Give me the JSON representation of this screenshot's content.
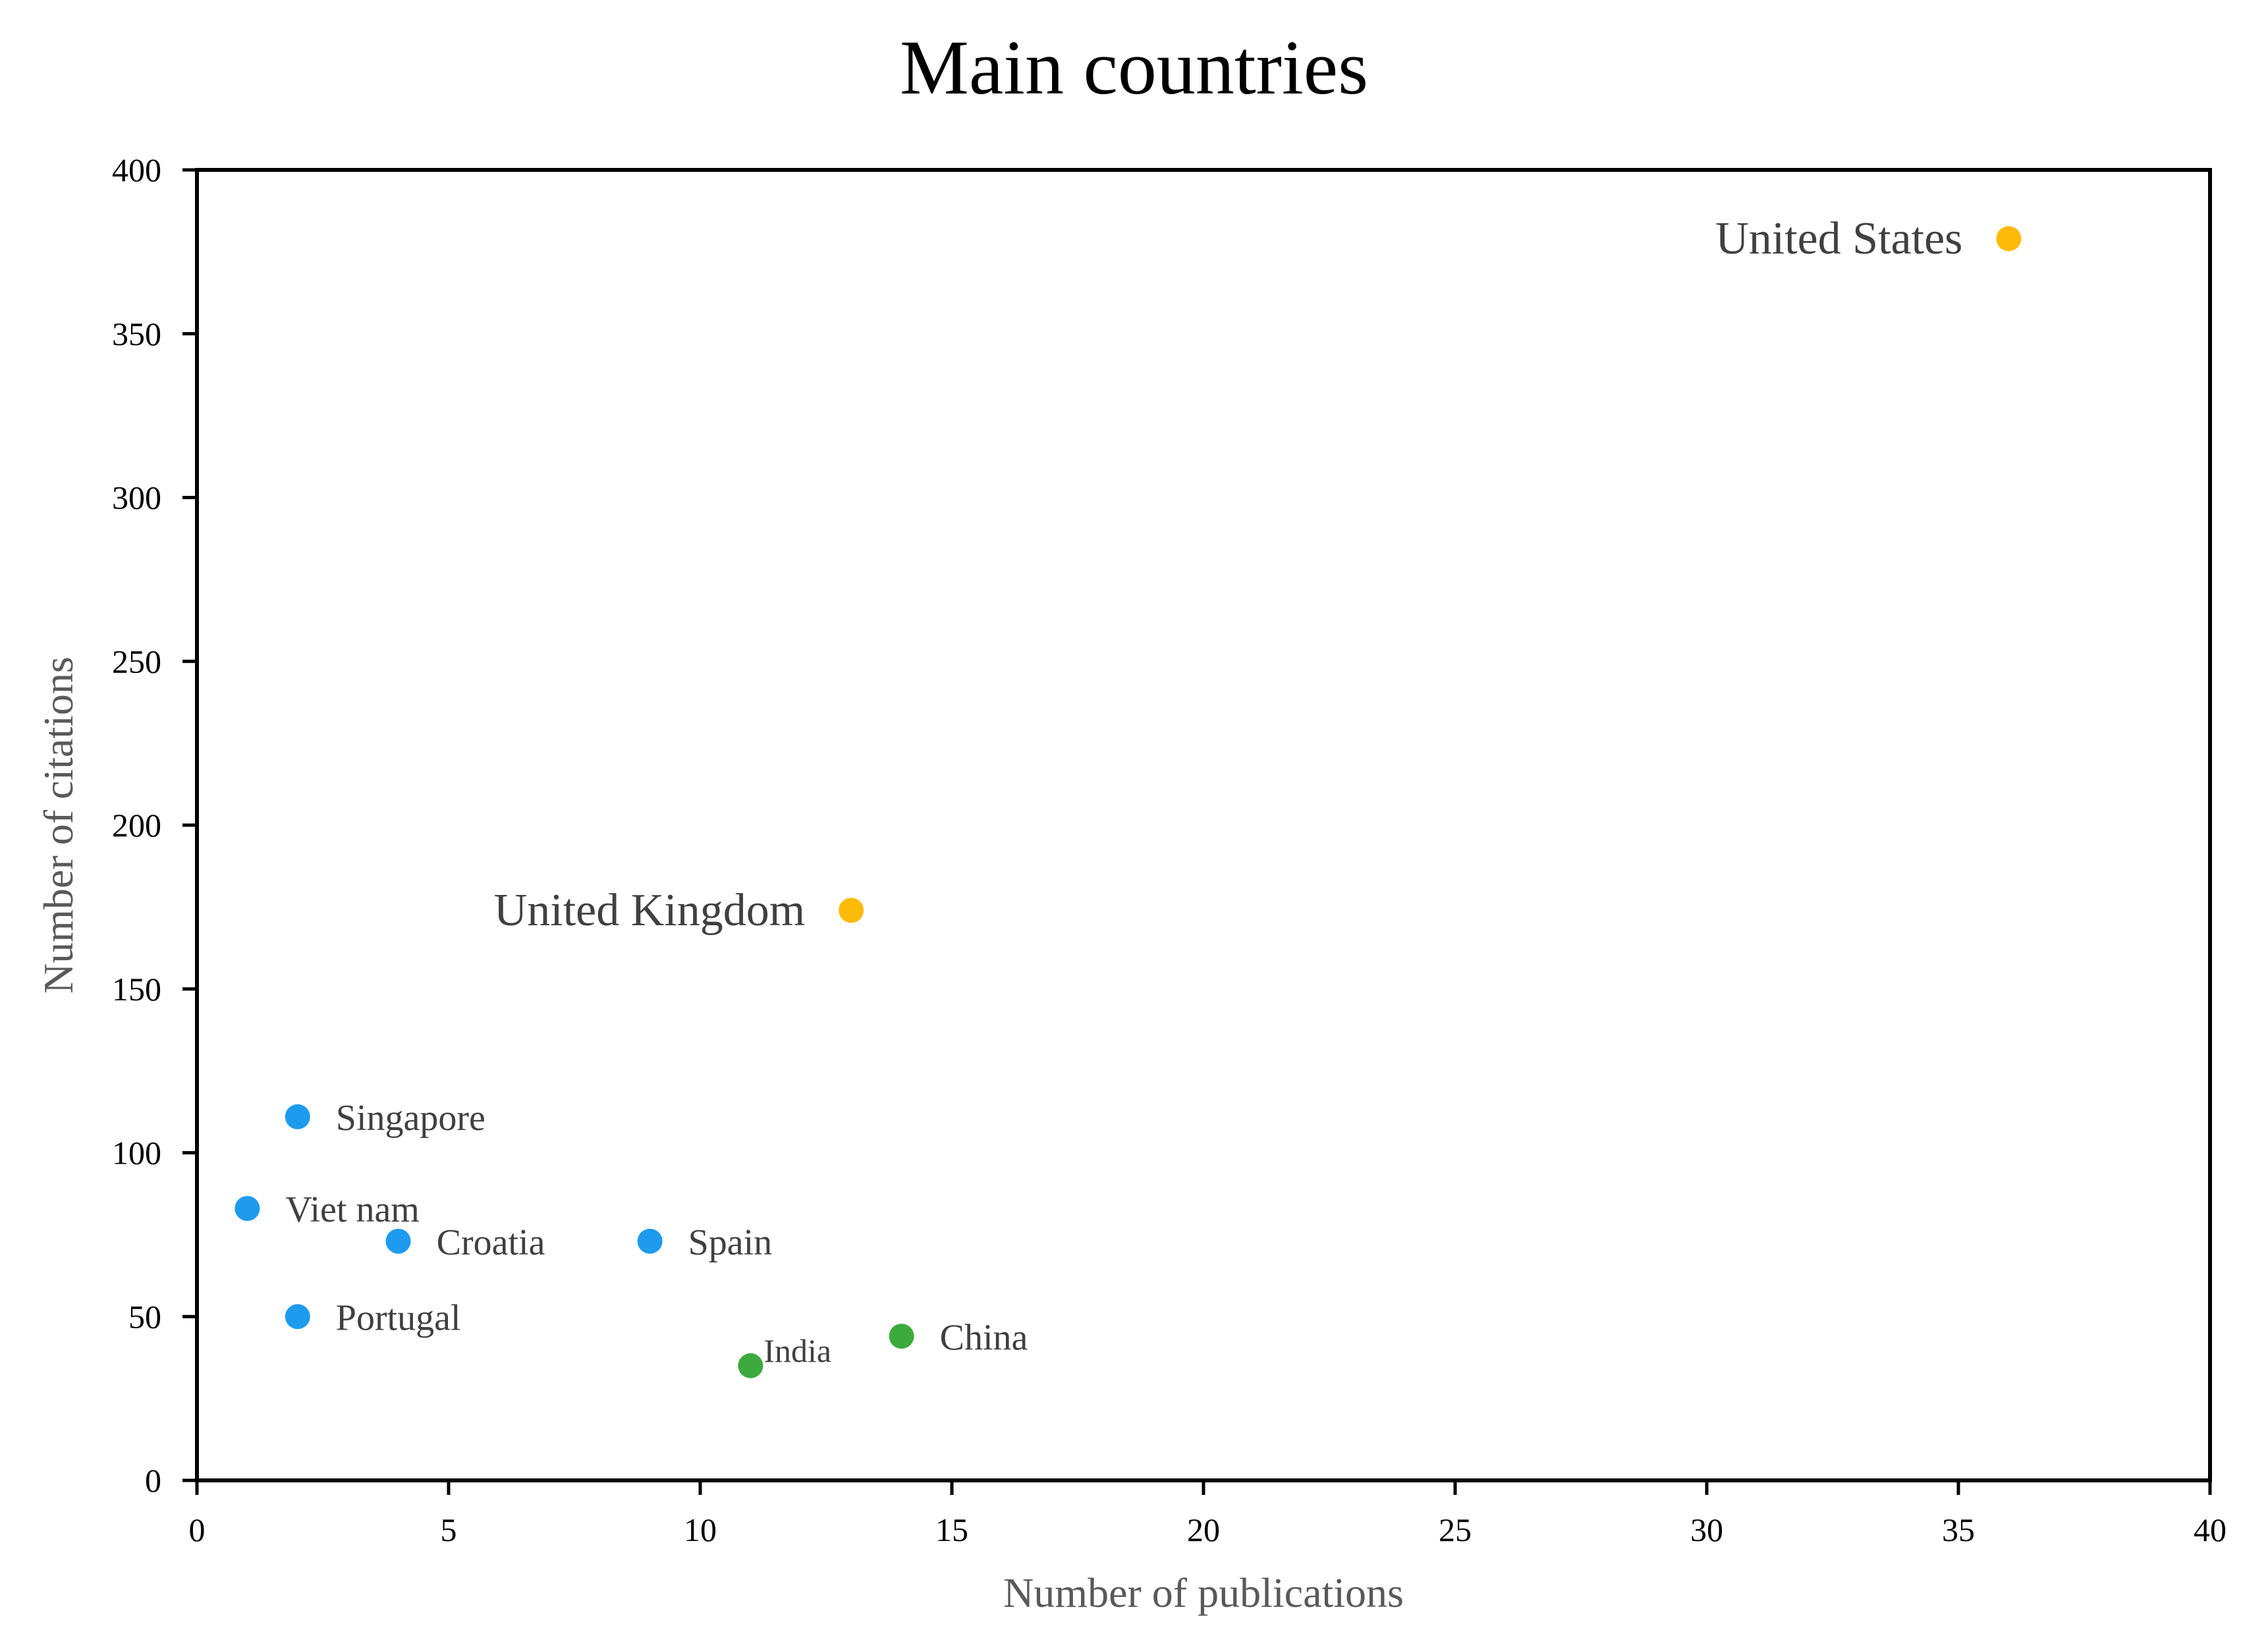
{
  "chart_data": {
    "type": "scatter",
    "title": "Main countries",
    "xlabel": "Number of publications",
    "ylabel": "Number of citations",
    "xlim": [
      0,
      40
    ],
    "ylim": [
      0,
      400
    ],
    "xticks": [
      0,
      5,
      10,
      15,
      20,
      25,
      30,
      35,
      40
    ],
    "yticks": [
      0,
      50,
      100,
      150,
      200,
      250,
      300,
      350,
      400
    ],
    "grid": false,
    "legend": "none",
    "colors": {
      "blue": "#1E9BEF",
      "green": "#3DAA3D",
      "orange": "#FFBA0A",
      "axis": "#000000"
    },
    "points": [
      {
        "label": "United States",
        "x": 36,
        "y": 379,
        "color": "orange",
        "label_pos": "left",
        "size": "large"
      },
      {
        "label": "United Kingdom",
        "x": 13,
        "y": 174,
        "color": "orange",
        "label_pos": "left",
        "size": "large"
      },
      {
        "label": "Singapore",
        "x": 2,
        "y": 111,
        "color": "blue",
        "label_pos": "right",
        "size": "medium"
      },
      {
        "label": "Viet nam",
        "x": 1,
        "y": 83,
        "color": "blue",
        "label_pos": "right",
        "size": "medium"
      },
      {
        "label": "Croatia",
        "x": 4,
        "y": 73,
        "color": "blue",
        "label_pos": "right",
        "size": "medium"
      },
      {
        "label": "Spain",
        "x": 9,
        "y": 73,
        "color": "blue",
        "label_pos": "right",
        "size": "medium"
      },
      {
        "label": "Portugal",
        "x": 2,
        "y": 50,
        "color": "blue",
        "label_pos": "right",
        "size": "medium"
      },
      {
        "label": "China",
        "x": 14,
        "y": 44,
        "color": "green",
        "label_pos": "right",
        "size": "medium"
      },
      {
        "label": "India",
        "x": 11,
        "y": 35,
        "color": "green",
        "label_pos": "upper-right",
        "size": "small"
      }
    ]
  }
}
